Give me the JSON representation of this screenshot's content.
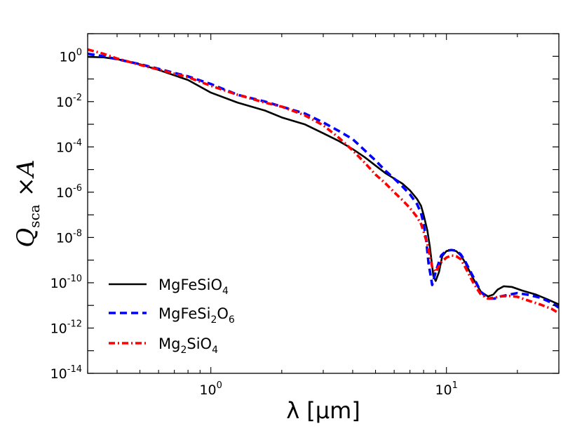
{
  "chart_data": {
    "type": "line",
    "title": "",
    "xlabel": "λ [μm]",
    "ylabel": "Q_sca × A",
    "xscale": "log",
    "yscale": "log",
    "xlim": [
      0.3,
      30
    ],
    "ylim": [
      1e-14,
      10.0
    ],
    "grid": false,
    "legend_position": "lower-left",
    "x_ticks": [
      {
        "value": 1,
        "base": "10",
        "exp": "0"
      },
      {
        "value": 10,
        "base": "10",
        "exp": "1"
      }
    ],
    "y_ticks": [
      {
        "value": 1,
        "base": "10",
        "exp": "0"
      },
      {
        "value": 0.01,
        "base": "10",
        "exp": "-2"
      },
      {
        "value": 0.0001,
        "base": "10",
        "exp": "-4"
      },
      {
        "value": 1e-06,
        "base": "10",
        "exp": "-6"
      },
      {
        "value": 1e-08,
        "base": "10",
        "exp": "-8"
      },
      {
        "value": 1e-10,
        "base": "10",
        "exp": "-10"
      },
      {
        "value": 1e-12,
        "base": "10",
        "exp": "-12"
      },
      {
        "value": 1e-14,
        "base": "10",
        "exp": "-14"
      }
    ],
    "series": [
      {
        "name": "MgFeSiO4",
        "legend_parts": [
          {
            "t": "MgFeSiO",
            "sub": false
          },
          {
            "t": "4",
            "sub": true
          }
        ],
        "color": "#000000",
        "style": "solid",
        "x": [
          0.3,
          0.35,
          0.4,
          0.5,
          0.6,
          0.8,
          1.0,
          1.3,
          1.7,
          2.0,
          2.5,
          3.0,
          3.5,
          4.0,
          4.5,
          5.0,
          5.5,
          6.0,
          6.5,
          7.0,
          7.5,
          7.8,
          8.0,
          8.3,
          8.5,
          8.8,
          9.0,
          9.3,
          9.6,
          10.0,
          10.5,
          11.0,
          11.5,
          12.0,
          13.0,
          14.0,
          15.0,
          15.8,
          16.5,
          17.5,
          19.0,
          21.0,
          24.0,
          27.0,
          30.0
        ],
        "y": [
          0.95,
          0.9,
          0.75,
          0.45,
          0.25,
          0.09,
          0.025,
          0.009,
          0.004,
          0.002,
          0.001,
          0.0004,
          0.00018,
          8e-05,
          3.5e-05,
          1.5e-05,
          7e-06,
          4e-06,
          2.4e-06,
          1.2e-06,
          5e-07,
          2.5e-07,
          1e-07,
          2e-08,
          4e-09,
          2e-10,
          1.2e-10,
          3e-10,
          1.5e-09,
          2.5e-09,
          2.8e-09,
          2.5e-09,
          1.6e-09,
          8e-10,
          1.5e-10,
          4e-11,
          2.5e-11,
          3e-11,
          5e-11,
          7e-11,
          6.5e-11,
          4.5e-11,
          3e-11,
          1.8e-11,
          1.1e-11
        ]
      },
      {
        "name": "MgFeSi2O6",
        "legend_parts": [
          {
            "t": "MgFeSi",
            "sub": false
          },
          {
            "t": "2",
            "sub": true
          },
          {
            "t": "O",
            "sub": false
          },
          {
            "t": "6",
            "sub": true
          }
        ],
        "color": "#0000ff",
        "style": "dashed",
        "x": [
          0.3,
          0.35,
          0.4,
          0.5,
          0.6,
          0.8,
          1.0,
          1.3,
          1.7,
          2.0,
          2.5,
          3.0,
          3.5,
          4.0,
          4.5,
          5.0,
          5.5,
          6.0,
          6.5,
          7.0,
          7.5,
          7.8,
          8.0,
          8.2,
          8.4,
          8.7,
          9.0,
          9.5,
          10.0,
          10.5,
          11.0,
          11.5,
          12.0,
          13.0,
          14.0,
          15.0,
          16.0,
          17.0,
          18.5,
          20.0,
          22.0,
          25.0,
          28.0,
          30.0
        ],
        "y": [
          1.3,
          1.0,
          0.75,
          0.45,
          0.28,
          0.13,
          0.06,
          0.02,
          0.01,
          0.006,
          0.003,
          0.0012,
          0.0005,
          0.00022,
          7e-05,
          2.5e-05,
          9e-06,
          4e-06,
          1.8e-06,
          8e-07,
          3e-07,
          1.2e-07,
          4e-08,
          8e-09,
          7e-10,
          8e-11,
          3e-10,
          1.6e-09,
          2.6e-09,
          2.8e-09,
          2.6e-09,
          1.8e-09,
          9e-10,
          1.8e-10,
          4e-11,
          2e-11,
          2e-11,
          2.5e-11,
          3e-11,
          3.5e-11,
          3e-11,
          2.2e-11,
          1.3e-11,
          8e-12
        ]
      },
      {
        "name": "Mg2SiO4",
        "legend_parts": [
          {
            "t": "Mg",
            "sub": false
          },
          {
            "t": "2",
            "sub": true
          },
          {
            "t": "SiO",
            "sub": false
          },
          {
            "t": "4",
            "sub": true
          }
        ],
        "color": "#ff0000",
        "style": "dashdot",
        "x": [
          0.3,
          0.35,
          0.4,
          0.5,
          0.6,
          0.8,
          1.0,
          1.3,
          1.7,
          2.0,
          2.5,
          3.0,
          3.5,
          4.0,
          4.5,
          5.0,
          5.5,
          6.0,
          6.5,
          7.0,
          7.5,
          7.8,
          8.0,
          8.3,
          8.7,
          9.0,
          9.5,
          10.0,
          10.5,
          11.0,
          11.5,
          12.0,
          13.0,
          14.0,
          15.0,
          16.0,
          17.0,
          18.5,
          20.0,
          22.0,
          25.0,
          28.0,
          30.0
        ],
        "y": [
          2.0,
          1.3,
          0.8,
          0.42,
          0.26,
          0.12,
          0.05,
          0.02,
          0.009,
          0.006,
          0.0025,
          0.0009,
          0.00025,
          7e-05,
          2e-05,
          6e-06,
          2.5e-06,
          1e-06,
          4.5e-07,
          2e-07,
          8e-08,
          4e-08,
          1.8e-08,
          5e-09,
          5e-10,
          3e-10,
          8e-10,
          1.3e-09,
          1.6e-09,
          1.5e-09,
          1.1e-09,
          5e-10,
          1e-10,
          3e-11,
          2e-11,
          2.2e-11,
          2.5e-11,
          2.6e-11,
          2.4e-11,
          1.7e-11,
          1.1e-11,
          7e-12,
          4.5e-12
        ]
      }
    ]
  }
}
